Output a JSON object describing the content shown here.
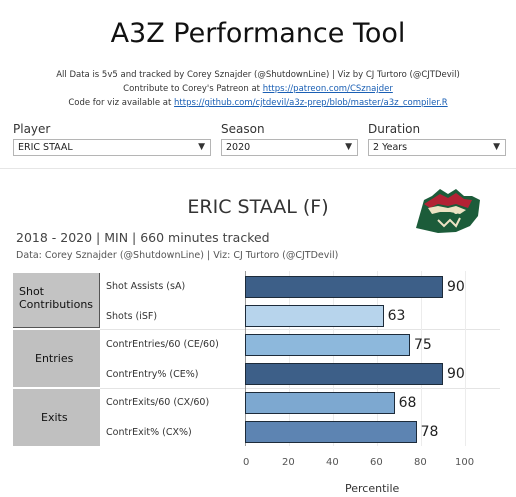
{
  "header": {
    "title": "A3Z Performance Tool",
    "credit_line1": "All Data is 5v5 and tracked by Corey Sznajder (@ShutdownLine) | Viz by CJ Turtoro (@CJTDevil)",
    "credit_line2_prefix": "Contribute to Corey's Patreon at ",
    "credit_line2_link": "https://patreon.com/CSznajder",
    "credit_line3_prefix": "Code for viz available at ",
    "credit_line3_link": "https://github.com/cjtdevil/a3z-prep/blob/master/a3z_compiler.R"
  },
  "filters": {
    "player": {
      "label": "Player",
      "value": "ERIC STAAL"
    },
    "season": {
      "label": "Season",
      "value": "2020"
    },
    "duration": {
      "label": "Duration",
      "value": "2 Years"
    }
  },
  "icons": {
    "dropdown": "chevron-down-icon",
    "team_logo": "minnesota-wild-logo"
  },
  "player_card": {
    "name": "ERIC STAAL (F)",
    "subhead": "2018 - 2020 |  MIN  | 660 minutes tracked",
    "data_line": "Data: Corey Sznajder (@ShutdownLine) | Viz: CJ Turtoro (@CJTDevil)"
  },
  "colors": {
    "dark": "#3d5f88",
    "light": "#b7d4ec",
    "mid_light": "#8db8dc",
    "mid": "#7da8d0",
    "steel": "#5d84b2",
    "logo_green": "#1c5c3a",
    "logo_red": "#b22234",
    "logo_cream": "#ede3c4"
  },
  "chart_data": {
    "type": "bar",
    "orientation": "horizontal",
    "groups": [
      "Shot Contributions",
      "Entries",
      "Exits"
    ],
    "categories": [
      "Shot Assists (sA)",
      "Shots (iSF)",
      "ContrEntries/60 (CE/60)",
      "ContrEntry% (CE%)",
      "ContrExits/60 (CX/60)",
      "ContrExit% (CX%)"
    ],
    "values": [
      90,
      63,
      75,
      90,
      68,
      78
    ],
    "xlabel": "Percentile",
    "xlim": [
      0,
      100
    ],
    "xticks": [
      "0",
      "20",
      "40",
      "60",
      "80",
      "100"
    ],
    "grid": true
  }
}
